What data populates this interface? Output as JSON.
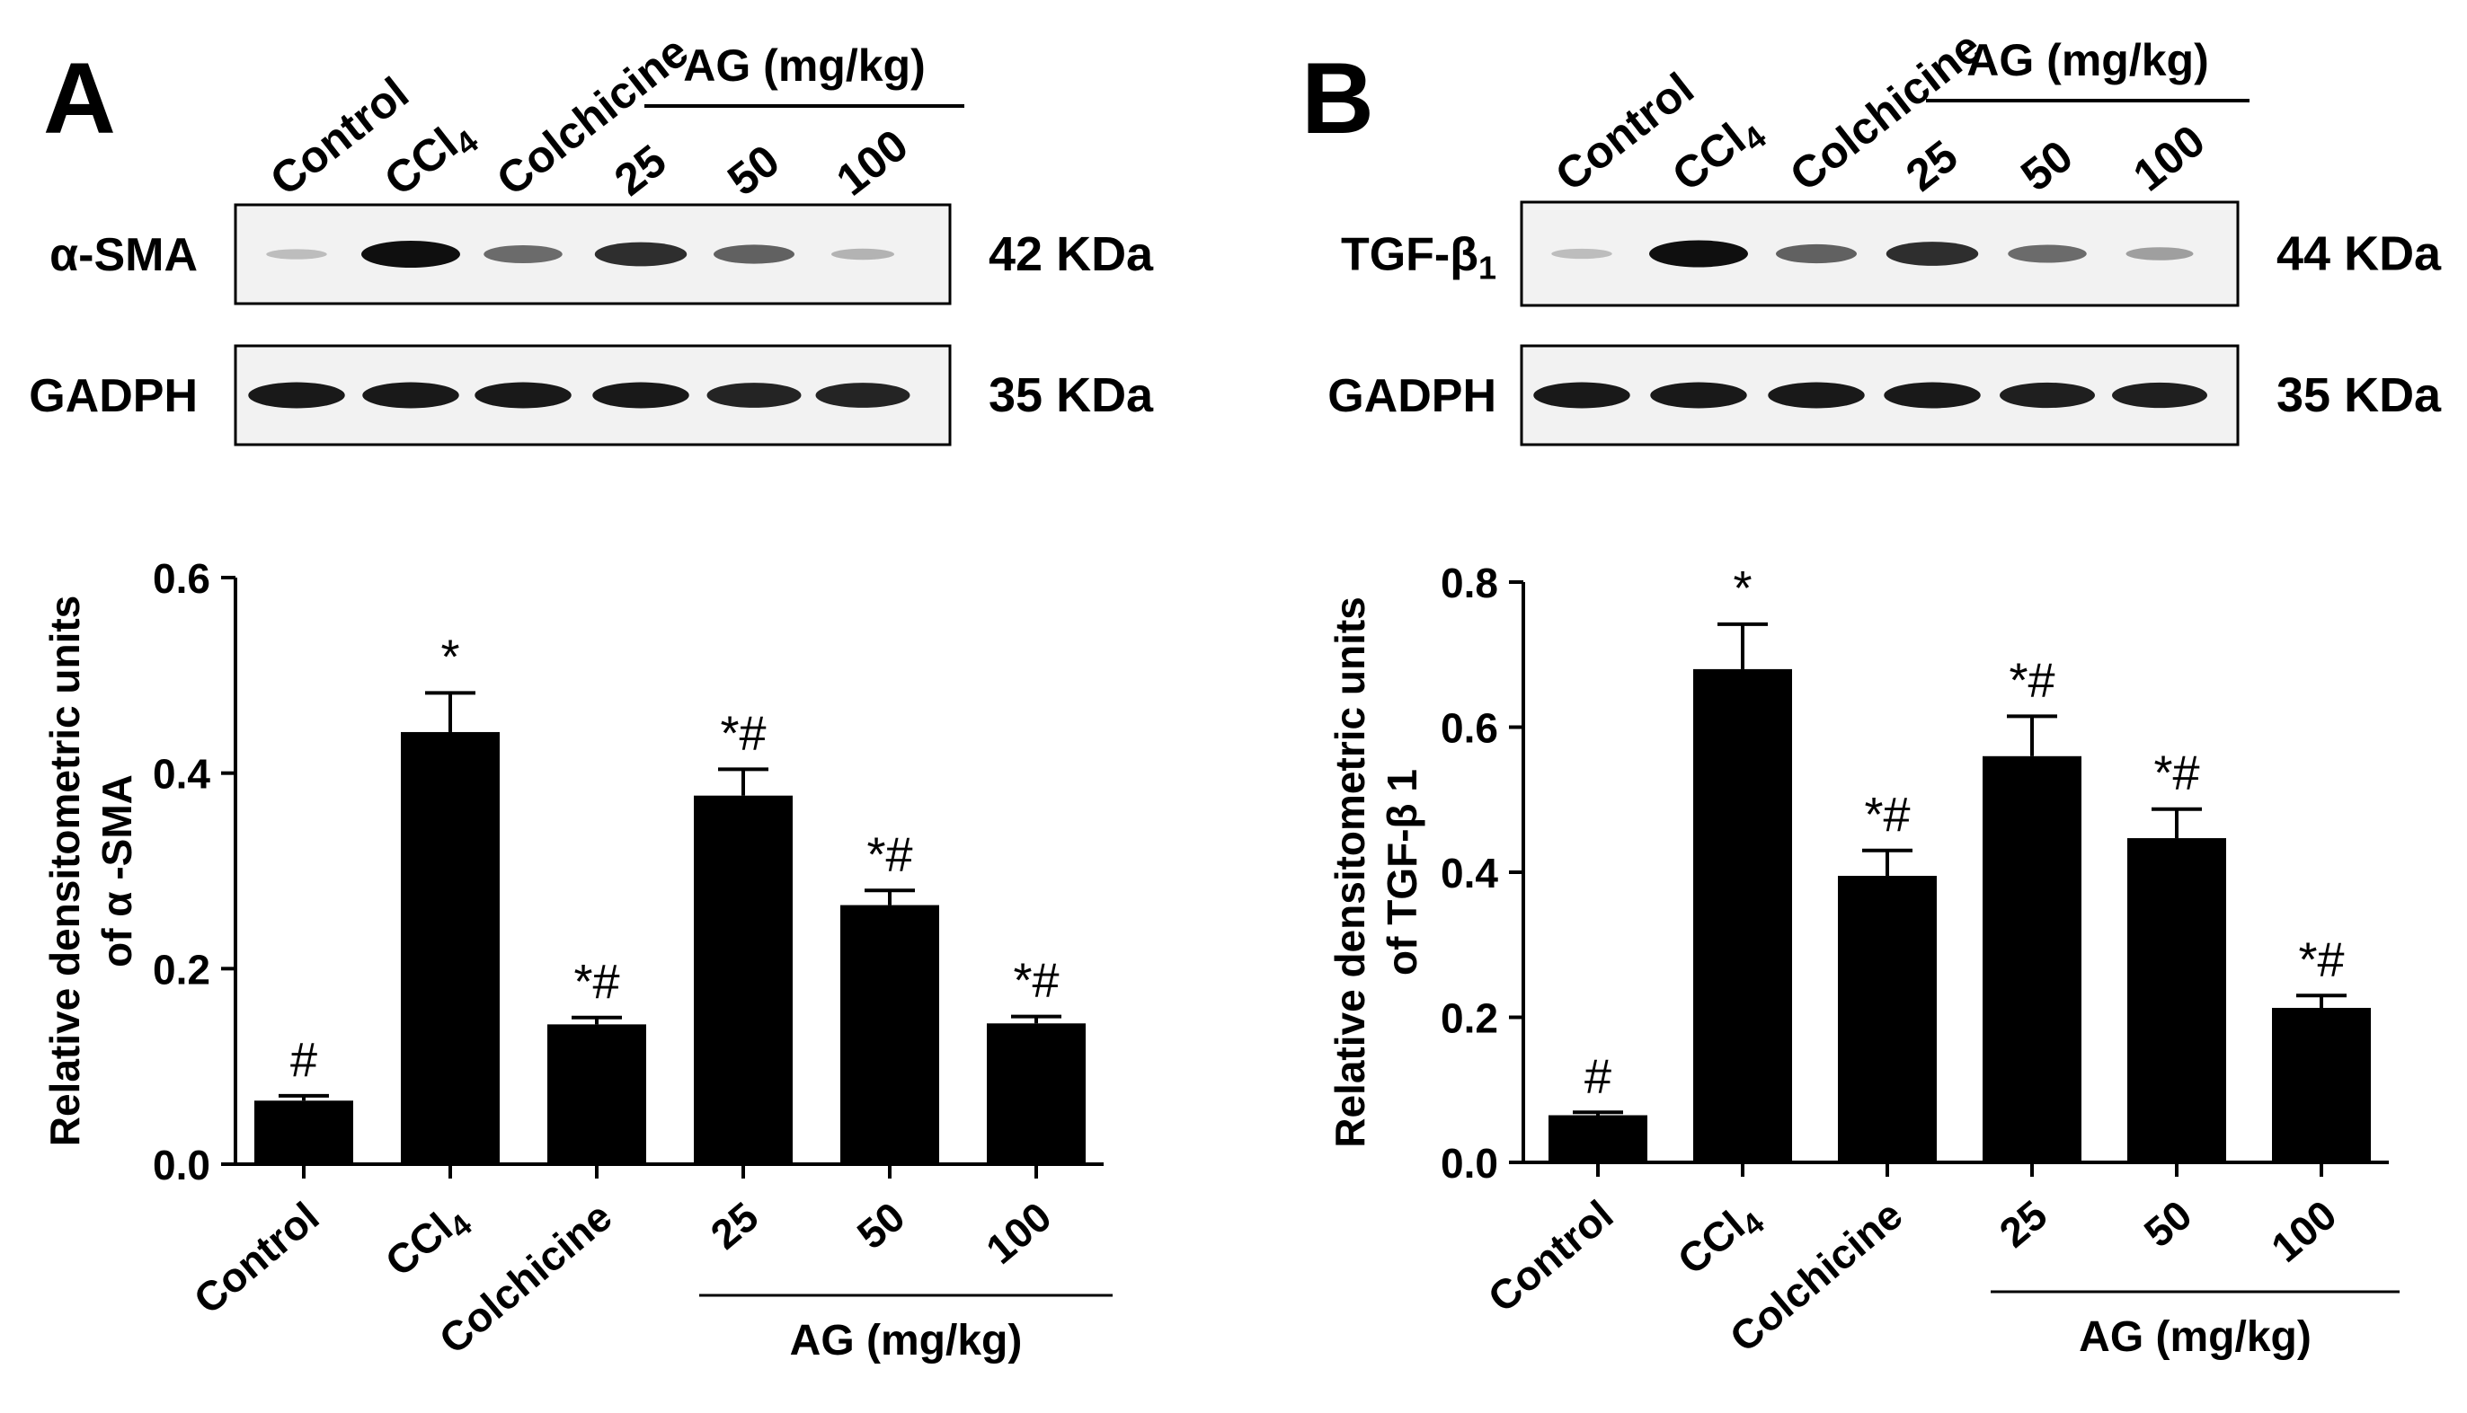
{
  "panel_letters": [
    "A",
    "B"
  ],
  "blots": [
    {
      "lanes": [
        "Control",
        "CCl4",
        "Colchicine",
        "25",
        "50",
        "100"
      ],
      "group_label": "AG (mg/kg)",
      "rows": [
        {
          "label": "α-SMA",
          "size": "42 KDa",
          "intensity": [
            0.15,
            1.0,
            0.55,
            0.85,
            0.6,
            0.2
          ]
        },
        {
          "label": "GADPH",
          "size": "35 KDa",
          "intensity": [
            0.95,
            0.95,
            0.95,
            0.95,
            0.9,
            0.9
          ]
        }
      ]
    },
    {
      "lanes": [
        "Control",
        "CCl4",
        "Colchicine",
        "25",
        "50",
        "100"
      ],
      "group_label": "AG (mg/kg)",
      "rows": [
        {
          "label": "TGF-β1",
          "size": "44 KDa",
          "intensity": [
            0.15,
            1.0,
            0.6,
            0.85,
            0.55,
            0.3
          ]
        },
        {
          "label": "GADPH",
          "size": "35 KDa",
          "intensity": [
            0.95,
            0.95,
            0.95,
            0.95,
            0.92,
            0.92
          ]
        }
      ]
    }
  ],
  "chart_data": [
    {
      "type": "bar",
      "categories": [
        "Control",
        "CCl4",
        "Colchicine",
        "25",
        "50",
        "100"
      ],
      "values": [
        0.065,
        0.442,
        0.143,
        0.377,
        0.265,
        0.144
      ],
      "errors": [
        0.005,
        0.04,
        0.007,
        0.027,
        0.015,
        0.007
      ],
      "annotations": [
        "#",
        "*",
        "*#",
        "*#",
        "*#",
        "*#"
      ],
      "ylabel": "Relative densitometric units of α -SMA",
      "ylim": [
        0,
        0.6
      ],
      "yticks": [
        "0.0",
        "0.2",
        "0.4",
        "0.6"
      ],
      "group_label": "AG (mg/kg)",
      "bar_color": "#000000"
    },
    {
      "type": "bar",
      "categories": [
        "Control",
        "CCl4",
        "Colchicine",
        "25",
        "50",
        "100"
      ],
      "values": [
        0.065,
        0.68,
        0.395,
        0.56,
        0.447,
        0.213
      ],
      "errors": [
        0.004,
        0.062,
        0.035,
        0.055,
        0.04,
        0.017
      ],
      "annotations": [
        "#",
        "*",
        "*#",
        "*#",
        "*#",
        "*#"
      ],
      "ylabel": "Relative densitometric units of TGF-β 1",
      "ylim": [
        0,
        0.8
      ],
      "yticks": [
        "0.0",
        "0.2",
        "0.4",
        "0.6",
        "0.8"
      ],
      "group_label": "AG (mg/kg)",
      "bar_color": "#000000"
    }
  ]
}
